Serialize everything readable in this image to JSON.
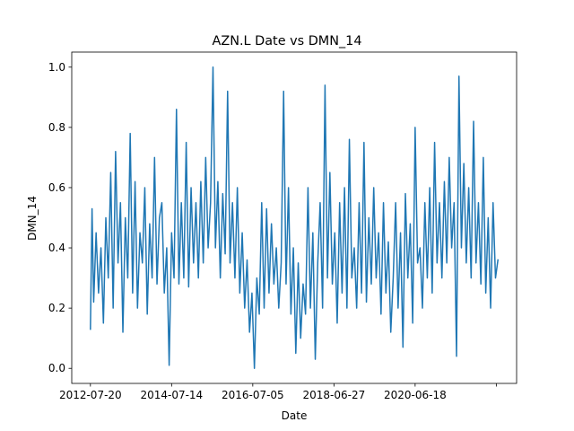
{
  "chart_data": {
    "type": "line",
    "title": "AZN.L Date vs DMN_14",
    "xlabel": "Date",
    "ylabel": "DMN_14",
    "x_tick_labels": [
      "2012-07-20",
      "2014-07-14",
      "2016-07-05",
      "2018-06-27",
      "2020-06-18",
      ""
    ],
    "x_tick_index": [
      0,
      500,
      1000,
      1500,
      2000,
      2500
    ],
    "y_ticks": [
      0.0,
      0.2,
      0.4,
      0.6,
      0.8,
      1.0
    ],
    "y_tick_labels": [
      "0.0",
      "0.2",
      "0.4",
      "0.6",
      "0.8",
      "1.0"
    ],
    "ylim": [
      -0.05,
      1.05
    ],
    "xlim": [
      -115,
      2625
    ],
    "grid": false,
    "series": [
      {
        "name": "DMN_14",
        "color": "#1f77b4",
        "x_index": [
          0,
          10,
          20,
          35,
          50,
          65,
          80,
          95,
          110,
          125,
          140,
          155,
          170,
          185,
          200,
          215,
          230,
          245,
          260,
          275,
          290,
          305,
          320,
          335,
          350,
          365,
          380,
          395,
          410,
          425,
          440,
          455,
          470,
          485,
          500,
          515,
          530,
          545,
          560,
          575,
          590,
          605,
          620,
          635,
          650,
          665,
          680,
          695,
          710,
          725,
          740,
          755,
          770,
          785,
          800,
          815,
          830,
          845,
          860,
          875,
          890,
          905,
          920,
          935,
          950,
          965,
          980,
          995,
          1010,
          1025,
          1040,
          1055,
          1070,
          1085,
          1100,
          1115,
          1130,
          1145,
          1160,
          1175,
          1190,
          1205,
          1220,
          1235,
          1250,
          1265,
          1280,
          1295,
          1310,
          1325,
          1340,
          1355,
          1370,
          1385,
          1400,
          1415,
          1430,
          1445,
          1460,
          1475,
          1490,
          1505,
          1520,
          1535,
          1550,
          1565,
          1580,
          1595,
          1610,
          1625,
          1640,
          1655,
          1670,
          1685,
          1700,
          1715,
          1730,
          1745,
          1760,
          1775,
          1790,
          1805,
          1820,
          1835,
          1850,
          1865,
          1880,
          1895,
          1910,
          1925,
          1940,
          1955,
          1970,
          1985,
          2000,
          2015,
          2030,
          2045,
          2060,
          2075,
          2090,
          2105,
          2120,
          2135,
          2150,
          2165,
          2180,
          2195,
          2210,
          2225,
          2240,
          2255,
          2270,
          2285,
          2300,
          2315,
          2330,
          2345,
          2360,
          2375,
          2390,
          2405,
          2420,
          2435,
          2450,
          2465,
          2480,
          2495,
          2510
        ],
        "values": [
          0.13,
          0.53,
          0.22,
          0.45,
          0.25,
          0.4,
          0.15,
          0.5,
          0.3,
          0.65,
          0.2,
          0.72,
          0.35,
          0.55,
          0.12,
          0.5,
          0.3,
          0.78,
          0.25,
          0.62,
          0.2,
          0.45,
          0.35,
          0.6,
          0.18,
          0.48,
          0.3,
          0.7,
          0.28,
          0.5,
          0.55,
          0.25,
          0.4,
          0.01,
          0.45,
          0.3,
          0.86,
          0.28,
          0.55,
          0.3,
          0.75,
          0.27,
          0.6,
          0.35,
          0.55,
          0.3,
          0.62,
          0.35,
          0.7,
          0.4,
          0.55,
          1.0,
          0.4,
          0.62,
          0.3,
          0.58,
          0.38,
          0.92,
          0.35,
          0.55,
          0.3,
          0.6,
          0.25,
          0.45,
          0.2,
          0.36,
          0.12,
          0.25,
          0.0,
          0.3,
          0.18,
          0.55,
          0.2,
          0.53,
          0.25,
          0.48,
          0.28,
          0.4,
          0.2,
          0.35,
          0.92,
          0.28,
          0.6,
          0.18,
          0.4,
          0.05,
          0.35,
          0.1,
          0.28,
          0.18,
          0.6,
          0.2,
          0.45,
          0.03,
          0.35,
          0.55,
          0.2,
          0.94,
          0.3,
          0.65,
          0.28,
          0.45,
          0.15,
          0.55,
          0.25,
          0.6,
          0.2,
          0.76,
          0.3,
          0.4,
          0.2,
          0.55,
          0.25,
          0.75,
          0.22,
          0.5,
          0.28,
          0.6,
          0.3,
          0.45,
          0.18,
          0.55,
          0.25,
          0.42,
          0.12,
          0.3,
          0.55,
          0.2,
          0.45,
          0.07,
          0.58,
          0.3,
          0.48,
          0.15,
          0.8,
          0.35,
          0.4,
          0.2,
          0.55,
          0.3,
          0.6,
          0.25,
          0.75,
          0.35,
          0.55,
          0.3,
          0.62,
          0.35,
          0.7,
          0.4,
          0.55,
          0.04,
          0.97,
          0.4,
          0.68,
          0.35,
          0.6,
          0.3,
          0.82,
          0.35,
          0.55,
          0.28,
          0.7,
          0.25,
          0.5,
          0.2,
          0.55,
          0.3,
          0.36
        ]
      }
    ]
  }
}
